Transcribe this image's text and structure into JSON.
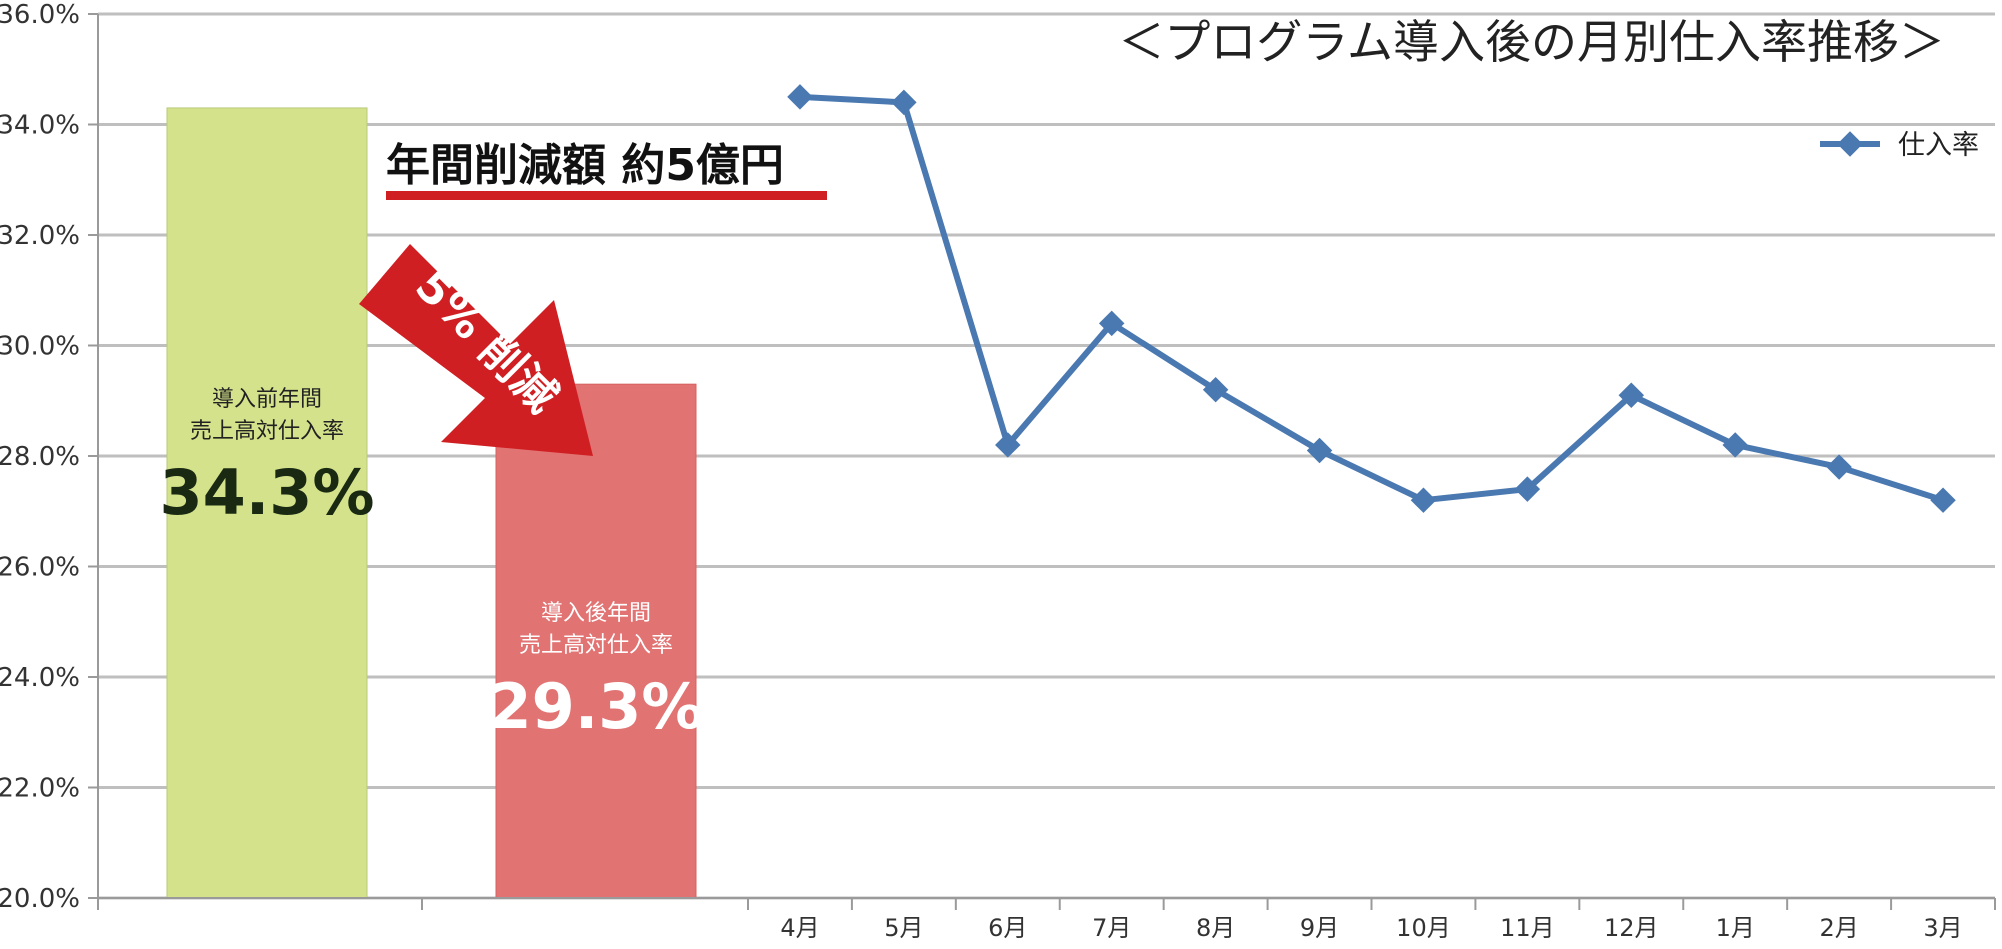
{
  "chart_data": {
    "type": "bar+line",
    "title": "＜プログラム導入後の月別仕入率推移＞",
    "ylim": [
      20.0,
      36.0
    ],
    "y_ticks": [
      "20.0%",
      "22.0%",
      "24.0%",
      "26.0%",
      "28.0%",
      "30.0%",
      "32.0%",
      "34.0%",
      "36.0%"
    ],
    "grid": true,
    "legend": {
      "position": "top-right",
      "label": "仕入率"
    },
    "bars": [
      {
        "label_line1": "導入前年間",
        "label_line2": "売上高対仕入率",
        "value": 34.3,
        "value_label": "34.3%",
        "color": "#d4e38b"
      },
      {
        "label_line1": "導入後年間",
        "label_line2": "売上高対仕入率",
        "value": 29.3,
        "value_label": "29.3%",
        "color": "#e27373"
      }
    ],
    "series": [
      {
        "name": "仕入率",
        "color": "#4a78b0",
        "categories": [
          "4月",
          "5月",
          "6月",
          "7月",
          "8月",
          "9月",
          "10月",
          "11月",
          "12月",
          "1月",
          "2月",
          "3月"
        ],
        "values": [
          34.5,
          34.4,
          28.2,
          30.4,
          29.2,
          28.1,
          27.2,
          27.4,
          29.1,
          28.2,
          27.8,
          27.2
        ]
      }
    ],
    "annotations": {
      "banner": "年間削減額 約5億円",
      "arrow_text": "5% 削減"
    }
  }
}
